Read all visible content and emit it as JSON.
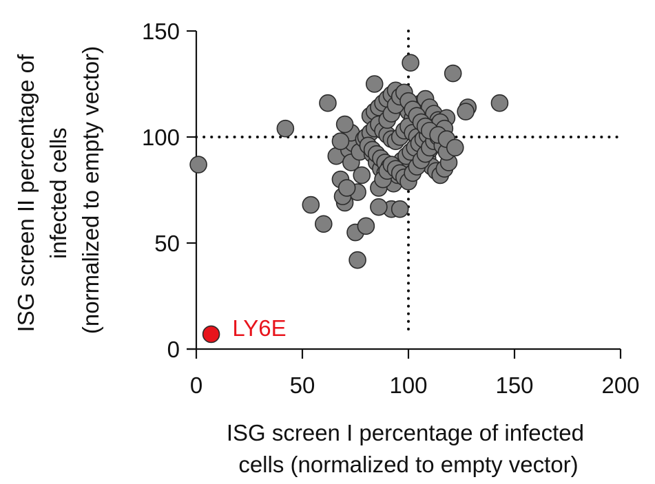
{
  "chart_data": {
    "type": "scatter",
    "title": "",
    "xlabel_lines": [
      "ISG screen I percentage of infected",
      "cells (normalized to empty vector)"
    ],
    "ylabel_lines": [
      "ISG screen II percentage of",
      "infected cells",
      "(normalized to empty vector)"
    ],
    "xlim": [
      0,
      200
    ],
    "ylim": [
      0,
      150
    ],
    "x_ticks": [
      0,
      50,
      100,
      150,
      200
    ],
    "y_ticks": [
      0,
      50,
      100,
      150
    ],
    "x_tick_labels": [
      "0",
      "50",
      "100",
      "150",
      "200"
    ],
    "y_tick_labels": [
      "0",
      "50",
      "100",
      "150"
    ],
    "grid": false,
    "reference_lines": {
      "x": 100,
      "y": 100
    },
    "colors": {
      "points": "#808080",
      "highlight": "#e8141c",
      "highlight_label": "#e8141c"
    },
    "series": [
      {
        "color": "#808080",
        "x": [
          1,
          42,
          62,
          54,
          60,
          128,
          143,
          121,
          101,
          84,
          75,
          76,
          80,
          76,
          92,
          96,
          86,
          70,
          68,
          66,
          72,
          74,
          73,
          70,
          68,
          69,
          71,
          78,
          73,
          77,
          79,
          81,
          83,
          85,
          87,
          89,
          91,
          93,
          95,
          97,
          99,
          101,
          103,
          105,
          107,
          109,
          111,
          113,
          115,
          117,
          119,
          82,
          84,
          86,
          88,
          90,
          92,
          94,
          96,
          98,
          100,
          102,
          104,
          106,
          108,
          110,
          112,
          114,
          116,
          118,
          80,
          82,
          84,
          86,
          88,
          90,
          92,
          94,
          96,
          98,
          100,
          102,
          104,
          106,
          108,
          110,
          112,
          114,
          116,
          81,
          83,
          85,
          87,
          89,
          91,
          93,
          95,
          97,
          99,
          101,
          103,
          105,
          107,
          109,
          111,
          113,
          115,
          117,
          86,
          88,
          90,
          92,
          94,
          96,
          98,
          100,
          102,
          104,
          106,
          108,
          110,
          112,
          114,
          116,
          118,
          90,
          92,
          94,
          96,
          98,
          100,
          102,
          104,
          106,
          108,
          110,
          114,
          118,
          122,
          127
        ],
        "y": [
          87,
          104,
          116,
          68,
          59,
          114,
          116,
          130,
          135,
          125,
          55,
          42,
          58,
          74,
          66,
          66,
          67,
          69,
          80,
          91,
          94,
          97,
          102,
          106,
          98,
          72,
          76,
          82,
          88,
          93,
          99,
          96,
          92,
          88,
          85,
          83,
          80,
          78,
          82,
          86,
          89,
          91,
          95,
          97,
          93,
          90,
          86,
          84,
          82,
          85,
          88,
          110,
          112,
          114,
          116,
          118,
          120,
          122,
          118,
          115,
          112,
          109,
          113,
          116,
          118,
          114,
          111,
          108,
          106,
          109,
          100,
          102,
          104,
          106,
          103,
          101,
          99,
          98,
          100,
          103,
          105,
          102,
          100,
          98,
          96,
          94,
          97,
          99,
          101,
          96,
          94,
          92,
          90,
          88,
          86,
          85,
          87,
          89,
          91,
          93,
          95,
          97,
          99,
          101,
          103,
          105,
          107,
          104,
          76,
          80,
          84,
          87,
          85,
          83,
          81,
          79,
          83,
          86,
          89,
          92,
          95,
          98,
          100,
          96,
          93,
          108,
          111,
          115,
          119,
          121,
          117,
          113,
          110,
          107,
          105,
          103,
          101,
          99,
          95,
          112
        ]
      },
      {
        "name": "LY6E",
        "color": "#e8141c",
        "x": [
          7
        ],
        "y": [
          7
        ]
      }
    ],
    "annotations": [
      {
        "text": "LY6E",
        "x": 17,
        "y": 10,
        "color": "#e8141c"
      }
    ]
  }
}
